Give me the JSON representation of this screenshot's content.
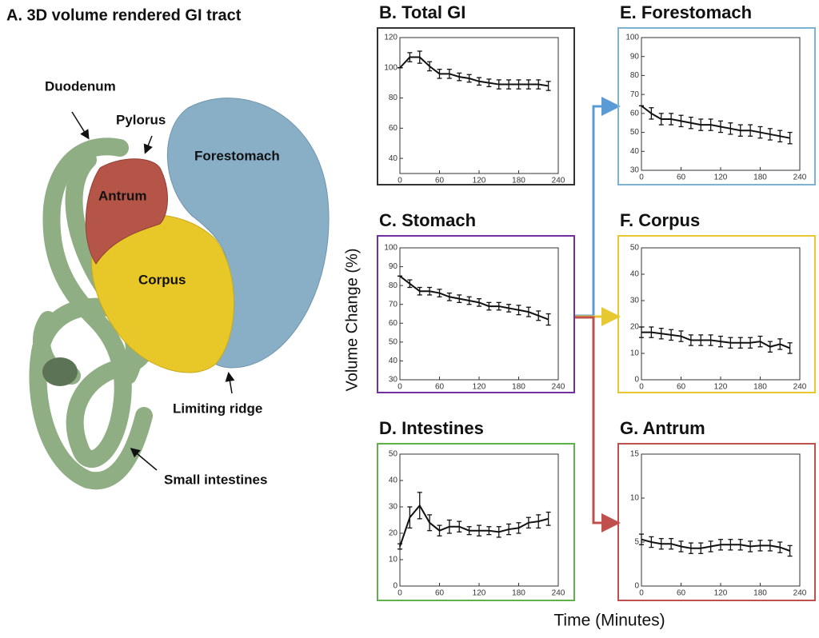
{
  "illustration": {
    "title": "A. 3D volume rendered GI tract",
    "labels": [
      "Duodenum",
      "Pylorus",
      "Antrum",
      "Forestomach",
      "Corpus",
      "Limiting ridge",
      "Small intestines"
    ]
  },
  "y_axis_label": "Volume Change (%)",
  "x_axis_label": "Time (Minutes)",
  "chart_data": [
    {
      "type": "line",
      "title": "B. Total GI",
      "title_color": "#111111",
      "frame_color": "#333333",
      "color": "#111111",
      "x": [
        0,
        15,
        30,
        45,
        60,
        75,
        90,
        105,
        120,
        135,
        150,
        165,
        180,
        195,
        210,
        225
      ],
      "values": [
        100,
        107,
        107,
        101,
        96,
        96,
        94,
        93,
        91,
        90,
        89,
        89,
        89,
        89,
        89,
        88
      ],
      "errors": [
        0,
        3,
        4,
        3,
        3,
        3,
        2.5,
        2.5,
        2.5,
        2.5,
        3,
        3,
        3,
        3,
        3,
        3
      ],
      "xlim": [
        0,
        240
      ],
      "xticks": [
        0,
        60,
        120,
        180,
        240
      ],
      "ylim": [
        30,
        120
      ],
      "yticks": [
        40,
        60,
        80,
        100,
        120
      ]
    },
    {
      "type": "line",
      "title": "C. Stomach",
      "title_color": "#7030a0",
      "frame_color": "#7030a0",
      "color": "#111111",
      "x": [
        0,
        15,
        30,
        45,
        60,
        75,
        90,
        105,
        120,
        135,
        150,
        165,
        180,
        195,
        210,
        225
      ],
      "values": [
        85,
        81,
        77,
        77,
        76,
        74,
        73,
        72,
        71,
        69,
        69,
        68,
        67,
        66,
        64,
        62
      ],
      "errors": [
        0,
        2,
        2,
        2,
        2,
        2,
        2,
        2,
        2,
        2,
        2,
        2,
        2.5,
        2.5,
        2.5,
        3
      ],
      "xlim": [
        0,
        240
      ],
      "xticks": [
        0,
        60,
        120,
        180,
        240
      ],
      "ylim": [
        30,
        100
      ],
      "yticks": [
        30,
        40,
        50,
        60,
        70,
        80,
        90,
        100
      ]
    },
    {
      "type": "line",
      "title": "D. Intestines",
      "title_color": "#5fb14a",
      "frame_color": "#5fb14a",
      "color": "#111111",
      "x": [
        0,
        15,
        30,
        45,
        60,
        75,
        90,
        105,
        120,
        135,
        150,
        165,
        180,
        195,
        210,
        225
      ],
      "values": [
        15,
        26,
        30.5,
        24,
        21,
        22.5,
        22.5,
        21,
        21,
        21,
        20.5,
        21.5,
        22,
        24,
        24.5,
        25.5
      ],
      "errors": [
        1,
        4,
        5,
        3,
        2,
        2.5,
        2,
        1.5,
        2,
        1.5,
        2,
        2,
        2,
        2,
        2.5,
        2.5
      ],
      "xlim": [
        0,
        240
      ],
      "xticks": [
        0,
        60,
        120,
        180,
        240
      ],
      "ylim": [
        0,
        50
      ],
      "yticks": [
        0,
        10,
        20,
        30,
        40,
        50
      ]
    },
    {
      "type": "line",
      "title": "E. Forestomach",
      "title_color": "#7fb2d0",
      "frame_color": "#7fb2d0",
      "color": "#111111",
      "x": [
        0,
        15,
        30,
        45,
        60,
        75,
        90,
        105,
        120,
        135,
        150,
        165,
        180,
        195,
        210,
        225
      ],
      "values": [
        64,
        60,
        57,
        57,
        56,
        55,
        54,
        54,
        53,
        52,
        51,
        51,
        50,
        49,
        48,
        47
      ],
      "errors": [
        0,
        3,
        3,
        3,
        3,
        3,
        3,
        3,
        3,
        3,
        3,
        3,
        3,
        3,
        3,
        3
      ],
      "xlim": [
        0,
        240
      ],
      "xticks": [
        0,
        60,
        120,
        180,
        240
      ],
      "ylim": [
        30,
        100
      ],
      "yticks": [
        30,
        40,
        50,
        60,
        70,
        80,
        90,
        100
      ]
    },
    {
      "type": "line",
      "title": "F. Corpus",
      "title_color": "#e8c830",
      "frame_color": "#e8c830",
      "color": "#111111",
      "x": [
        0,
        15,
        30,
        45,
        60,
        75,
        90,
        105,
        120,
        135,
        150,
        165,
        180,
        195,
        210,
        225
      ],
      "values": [
        18,
        18,
        17.5,
        17,
        16.5,
        15,
        15,
        15,
        14.5,
        14,
        14,
        14,
        14.5,
        12.5,
        13.5,
        12
      ],
      "errors": [
        2,
        2,
        2,
        2,
        2,
        2,
        2,
        2,
        2,
        2,
        2,
        2,
        2,
        2,
        2,
        2
      ],
      "xlim": [
        0,
        240
      ],
      "xticks": [
        0,
        60,
        120,
        180,
        240
      ],
      "ylim": [
        0,
        50
      ],
      "yticks": [
        0,
        10,
        20,
        30,
        40,
        50
      ]
    },
    {
      "type": "line",
      "title": "G. Antrum",
      "title_color": "#c0504d",
      "frame_color": "#c0504d",
      "color": "#111111",
      "x": [
        0,
        15,
        30,
        45,
        60,
        75,
        90,
        105,
        120,
        135,
        150,
        165,
        180,
        195,
        210,
        225
      ],
      "values": [
        5.3,
        5,
        4.8,
        4.8,
        4.5,
        4.3,
        4.3,
        4.5,
        4.7,
        4.7,
        4.7,
        4.5,
        4.6,
        4.6,
        4.4,
        4
      ],
      "errors": [
        0.6,
        0.6,
        0.6,
        0.6,
        0.6,
        0.6,
        0.6,
        0.6,
        0.6,
        0.6,
        0.6,
        0.6,
        0.6,
        0.6,
        0.6,
        0.6
      ],
      "xlim": [
        0,
        240
      ],
      "xticks": [
        0,
        60,
        120,
        180,
        240
      ],
      "ylim": [
        0,
        15
      ],
      "yticks": [
        0,
        5,
        10,
        15
      ]
    }
  ]
}
